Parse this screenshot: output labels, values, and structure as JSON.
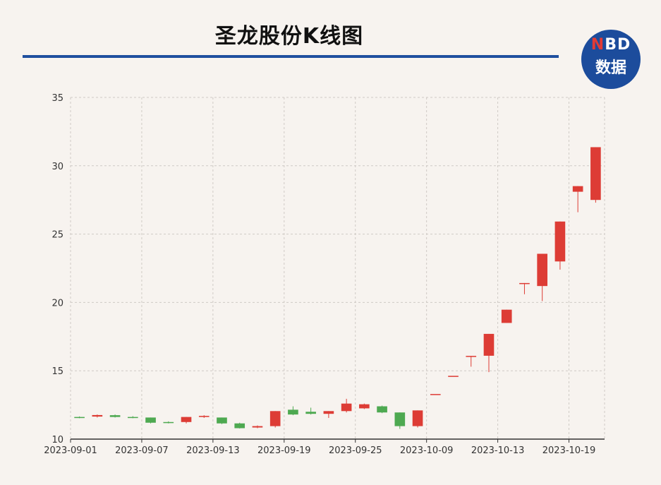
{
  "title": "圣龙股份K线图",
  "logo": {
    "top_n": "N",
    "top_rest": "BD",
    "bottom": "数据"
  },
  "colors": {
    "up": "#dd3c35",
    "down": "#4ea951",
    "accent": "#1f4f9e",
    "grid": "#cfcac5"
  },
  "chart_data": {
    "type": "candlestick",
    "title": "圣龙股份K线图",
    "ylim": [
      10,
      35
    ],
    "yticks": [
      10,
      15,
      20,
      25,
      30,
      35
    ],
    "grid": true,
    "x_tick_labels": [
      "2023-09-01",
      "2023-09-07",
      "2023-09-13",
      "2023-09-19",
      "2023-09-25",
      "2023-10-09",
      "2023-10-13",
      "2023-10-19"
    ],
    "x_tick_indices": [
      0,
      4,
      8,
      12,
      16,
      20,
      24,
      28
    ],
    "candles": [
      {
        "date": "2023-09-01",
        "open": 11.62,
        "close": 11.58,
        "high": 11.66,
        "low": 11.53
      },
      {
        "date": "2023-09-04",
        "open": 11.65,
        "close": 11.76,
        "high": 11.8,
        "low": 11.58
      },
      {
        "date": "2023-09-05",
        "open": 11.75,
        "close": 11.62,
        "high": 11.8,
        "low": 11.58
      },
      {
        "date": "2023-09-06",
        "open": 11.62,
        "close": 11.6,
        "high": 11.68,
        "low": 11.53
      },
      {
        "date": "2023-09-07",
        "open": 11.58,
        "close": 11.2,
        "high": 11.58,
        "low": 11.15
      },
      {
        "date": "2023-09-08",
        "open": 11.25,
        "close": 11.2,
        "high": 11.3,
        "low": 11.15
      },
      {
        "date": "2023-09-11",
        "open": 11.25,
        "close": 11.62,
        "high": 11.62,
        "low": 11.15
      },
      {
        "date": "2023-09-12",
        "open": 11.62,
        "close": 11.7,
        "high": 11.75,
        "low": 11.55
      },
      {
        "date": "2023-09-13",
        "open": 11.58,
        "close": 11.15,
        "high": 11.58,
        "low": 11.1
      },
      {
        "date": "2023-09-14",
        "open": 11.15,
        "close": 10.8,
        "high": 11.2,
        "low": 10.78
      },
      {
        "date": "2023-09-15",
        "open": 10.85,
        "close": 10.95,
        "high": 11.0,
        "low": 10.8
      },
      {
        "date": "2023-09-18",
        "open": 10.95,
        "close": 12.05,
        "high": 12.05,
        "low": 10.85
      },
      {
        "date": "2023-09-19",
        "open": 12.15,
        "close": 11.8,
        "high": 12.4,
        "low": 11.75
      },
      {
        "date": "2023-09-20",
        "open": 12.0,
        "close": 11.85,
        "high": 12.3,
        "low": 11.8
      },
      {
        "date": "2023-09-21",
        "open": 11.85,
        "close": 12.05,
        "high": 12.05,
        "low": 11.55
      },
      {
        "date": "2023-09-22",
        "open": 12.05,
        "close": 12.6,
        "high": 12.95,
        "low": 11.95
      },
      {
        "date": "2023-09-25",
        "open": 12.25,
        "close": 12.55,
        "high": 12.6,
        "low": 12.2
      },
      {
        "date": "2023-09-26",
        "open": 12.4,
        "close": 11.95,
        "high": 12.45,
        "low": 11.9
      },
      {
        "date": "2023-09-27",
        "open": 11.95,
        "close": 10.95,
        "high": 11.95,
        "low": 10.75
      },
      {
        "date": "2023-09-28",
        "open": 10.95,
        "close": 12.1,
        "high": 12.1,
        "low": 10.85
      },
      {
        "date": "2023-10-09",
        "open": 13.3,
        "close": 13.3,
        "high": 13.3,
        "low": 13.3
      },
      {
        "date": "2023-10-10",
        "open": 14.63,
        "close": 14.63,
        "high": 14.63,
        "low": 14.63
      },
      {
        "date": "2023-10-11",
        "open": 16.09,
        "close": 16.09,
        "high": 16.09,
        "low": 15.3
      },
      {
        "date": "2023-10-12",
        "open": 16.1,
        "close": 17.7,
        "high": 17.7,
        "low": 14.9
      },
      {
        "date": "2023-10-13",
        "open": 18.5,
        "close": 19.47,
        "high": 19.47,
        "low": 18.5
      },
      {
        "date": "2023-10-16",
        "open": 21.42,
        "close": 21.42,
        "high": 21.42,
        "low": 20.6
      },
      {
        "date": "2023-10-17",
        "open": 21.2,
        "close": 23.56,
        "high": 23.56,
        "low": 20.1
      },
      {
        "date": "2023-10-18",
        "open": 23.0,
        "close": 25.92,
        "high": 25.92,
        "low": 22.4
      },
      {
        "date": "2023-10-19",
        "open": 28.1,
        "close": 28.51,
        "high": 28.51,
        "low": 26.6
      },
      {
        "date": "2023-10-20",
        "open": 27.5,
        "close": 31.36,
        "high": 31.36,
        "low": 27.3
      }
    ]
  }
}
